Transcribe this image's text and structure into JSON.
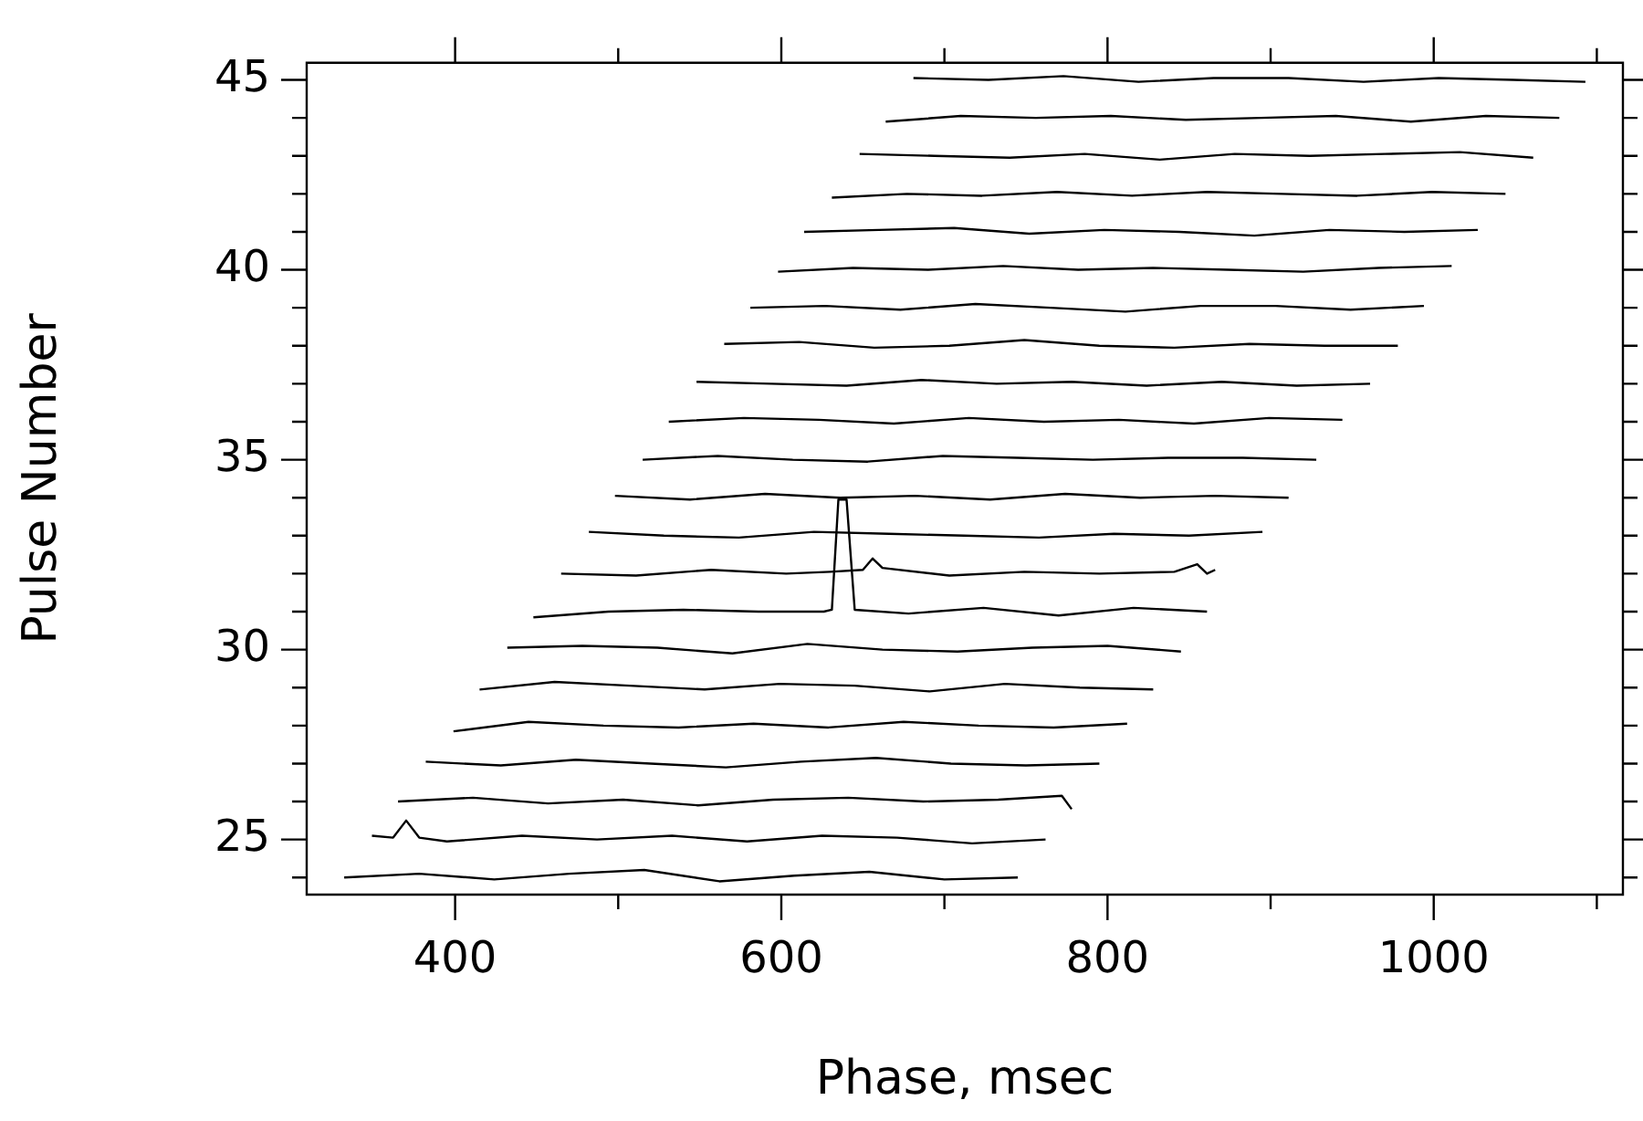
{
  "chart_data": {
    "type": "line",
    "xlabel": "Phase, msec",
    "ylabel": "Pulse Number",
    "xlim": [
      309,
      1116
    ],
    "ylim": [
      23.55,
      45.45
    ],
    "xticks": [
      400,
      {
        "value": 500,
        "label": null
      },
      600,
      {
        "value": 700,
        "label": null
      },
      800,
      {
        "value": 900,
        "label": null
      },
      1000,
      {
        "value": 1100,
        "label": null
      }
    ],
    "yticks": [
      {
        "value": 24,
        "label": null
      },
      25,
      {
        "value": 26,
        "label": null
      },
      {
        "value": 27,
        "label": null
      },
      {
        "value": 28,
        "label": null
      },
      {
        "value": 29,
        "label": null
      },
      30,
      {
        "value": 31,
        "label": null
      },
      {
        "value": 32,
        "label": null
      },
      {
        "value": 33,
        "label": null
      },
      {
        "value": 34,
        "label": null
      },
      35,
      {
        "value": 36,
        "label": null
      },
      {
        "value": 37,
        "label": null
      },
      {
        "value": 38,
        "label": null
      },
      {
        "value": 39,
        "label": null
      },
      40,
      {
        "value": 41,
        "label": null
      },
      {
        "value": 42,
        "label": null
      },
      {
        "value": 43,
        "label": null
      },
      {
        "value": 44,
        "label": null
      },
      45
    ],
    "grid": false,
    "legend": false,
    "marker": "none",
    "line_style": "solid",
    "series": [
      {
        "color": "#000000",
        "x": [
          332,
          378,
          424,
          470,
          516,
          562,
          608,
          654,
          700,
          745
        ],
        "values": [
          24,
          24.1,
          23.95,
          24.1,
          24.2,
          23.9,
          24.05,
          24.15,
          23.95,
          24
        ]
      },
      {
        "color": "#000000",
        "x": [
          349,
          362,
          370,
          378,
          395,
          441,
          487,
          533,
          579,
          625,
          671,
          717,
          762
        ],
        "values": [
          25.1,
          25.05,
          25.5,
          25.05,
          24.95,
          25.1,
          25,
          25.1,
          24.95,
          25.1,
          25.05,
          24.9,
          25
        ]
      },
      {
        "color": "#000000",
        "x": [
          365,
          411,
          457,
          503,
          549,
          595,
          641,
          687,
          733,
          772,
          778
        ],
        "values": [
          26,
          26.1,
          25.95,
          26.05,
          25.9,
          26.05,
          26.1,
          26,
          26.05,
          26.15,
          25.8
        ]
      },
      {
        "color": "#000000",
        "x": [
          382,
          428,
          474,
          520,
          566,
          612,
          658,
          704,
          750,
          795
        ],
        "values": [
          27.05,
          26.95,
          27.1,
          27,
          26.9,
          27.05,
          27.15,
          27,
          26.95,
          27
        ]
      },
      {
        "color": "#000000",
        "x": [
          399,
          445,
          491,
          537,
          583,
          629,
          675,
          721,
          767,
          812
        ],
        "values": [
          27.85,
          28.1,
          28,
          27.95,
          28.05,
          27.95,
          28.1,
          28,
          27.95,
          28.05
        ]
      },
      {
        "color": "#000000",
        "x": [
          415,
          461,
          507,
          553,
          599,
          645,
          691,
          737,
          783,
          828
        ],
        "values": [
          28.95,
          29.15,
          29.05,
          28.95,
          29.1,
          29.05,
          28.9,
          29.1,
          29,
          28.95
        ]
      },
      {
        "color": "#000000",
        "x": [
          432,
          478,
          524,
          570,
          616,
          662,
          708,
          754,
          800,
          845
        ],
        "values": [
          30.05,
          30.1,
          30.05,
          29.9,
          30.15,
          30,
          29.95,
          30.05,
          30.1,
          29.95
        ]
      },
      {
        "color": "#000000",
        "x": [
          448,
          494,
          540,
          586,
          626,
          631,
          635,
          640,
          645,
          678,
          724,
          770,
          816,
          861
        ],
        "values": [
          30.85,
          31,
          31.05,
          31,
          31,
          31.05,
          33.95,
          33.95,
          31.05,
          30.95,
          31.1,
          30.9,
          31.1,
          31
        ]
      },
      {
        "color": "#000000",
        "x": [
          465,
          511,
          557,
          603,
          630,
          650,
          656,
          662,
          703,
          749,
          795,
          841,
          855,
          861,
          866
        ],
        "values": [
          32,
          31.95,
          32.1,
          32,
          32.05,
          32.1,
          32.4,
          32.15,
          31.95,
          32.05,
          32,
          32.05,
          32.25,
          32,
          32.1
        ]
      },
      {
        "color": "#000000",
        "x": [
          482,
          528,
          574,
          620,
          666,
          712,
          758,
          804,
          850,
          895
        ],
        "values": [
          33.1,
          33,
          32.95,
          33.1,
          33.05,
          33,
          32.95,
          33.05,
          33,
          33.1
        ]
      },
      {
        "color": "#000000",
        "x": [
          498,
          544,
          590,
          636,
          682,
          728,
          774,
          820,
          866,
          911
        ],
        "values": [
          34.05,
          33.95,
          34.1,
          34,
          34.05,
          33.95,
          34.1,
          34,
          34.05,
          34
        ]
      },
      {
        "color": "#000000",
        "x": [
          515,
          561,
          607,
          653,
          699,
          745,
          791,
          837,
          883,
          928
        ],
        "values": [
          35,
          35.1,
          35,
          34.95,
          35.1,
          35.05,
          35,
          35.05,
          35.05,
          35
        ]
      },
      {
        "color": "#000000",
        "x": [
          531,
          577,
          623,
          669,
          715,
          761,
          807,
          853,
          899,
          944
        ],
        "values": [
          36,
          36.1,
          36.05,
          35.95,
          36.1,
          36,
          36.05,
          35.95,
          36.1,
          36.05
        ]
      },
      {
        "color": "#000000",
        "x": [
          548,
          594,
          640,
          686,
          732,
          778,
          824,
          870,
          916,
          961
        ],
        "values": [
          37.05,
          37,
          36.95,
          37.1,
          37,
          37.05,
          36.95,
          37.05,
          36.95,
          37
        ]
      },
      {
        "color": "#000000",
        "x": [
          565,
          611,
          657,
          703,
          749,
          795,
          841,
          887,
          933,
          978
        ],
        "values": [
          38.05,
          38.1,
          37.95,
          38,
          38.15,
          38,
          37.95,
          38.05,
          38,
          38
        ]
      },
      {
        "color": "#000000",
        "x": [
          581,
          627,
          673,
          719,
          765,
          811,
          857,
          903,
          949,
          994
        ],
        "values": [
          39,
          39.05,
          38.95,
          39.1,
          39,
          38.9,
          39.05,
          39.05,
          38.95,
          39.05
        ]
      },
      {
        "color": "#000000",
        "x": [
          598,
          644,
          690,
          736,
          782,
          828,
          874,
          920,
          966,
          1011
        ],
        "values": [
          39.95,
          40.05,
          40,
          40.1,
          40,
          40.05,
          40,
          39.95,
          40.05,
          40.1
        ]
      },
      {
        "color": "#000000",
        "x": [
          614,
          660,
          706,
          752,
          798,
          844,
          890,
          936,
          982,
          1027
        ],
        "values": [
          41,
          41.05,
          41.1,
          40.95,
          41.05,
          41,
          40.9,
          41.05,
          41,
          41.05
        ]
      },
      {
        "color": "#000000",
        "x": [
          631,
          677,
          723,
          769,
          815,
          861,
          907,
          953,
          999,
          1044
        ],
        "values": [
          41.9,
          42,
          41.95,
          42.05,
          41.95,
          42.05,
          42,
          41.95,
          42.05,
          42
        ]
      },
      {
        "color": "#000000",
        "x": [
          648,
          694,
          740,
          786,
          832,
          878,
          924,
          970,
          1016,
          1061
        ],
        "values": [
          43.05,
          43,
          42.95,
          43.05,
          42.9,
          43.05,
          43,
          43.05,
          43.1,
          42.95
        ]
      },
      {
        "color": "#000000",
        "x": [
          664,
          710,
          756,
          802,
          848,
          894,
          940,
          986,
          1032,
          1077
        ],
        "values": [
          43.9,
          44.05,
          44,
          44.05,
          43.95,
          44,
          44.05,
          43.9,
          44.05,
          44
        ]
      },
      {
        "color": "#000000",
        "x": [
          681,
          727,
          773,
          819,
          865,
          911,
          957,
          1003,
          1049,
          1093
        ],
        "values": [
          45.05,
          45,
          45.1,
          44.95,
          45.05,
          45.05,
          44.95,
          45.05,
          45,
          44.95
        ]
      }
    ]
  }
}
